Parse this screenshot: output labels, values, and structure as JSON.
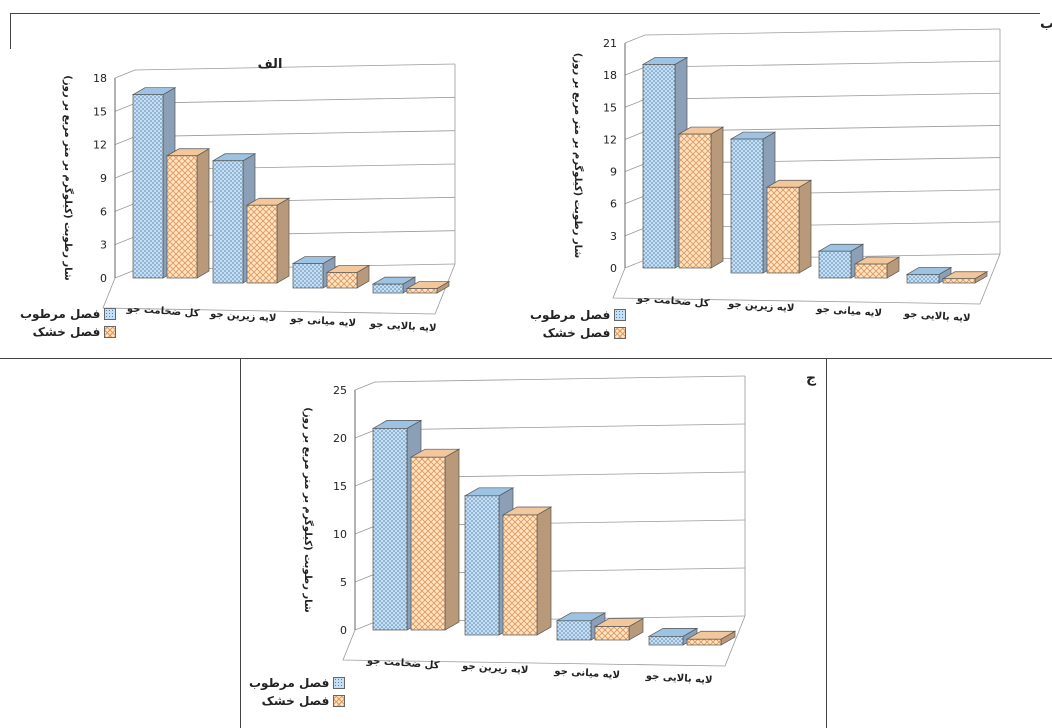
{
  "page": {
    "panel_labels": {
      "a": "الف",
      "b": "ب",
      "c": "ج"
    }
  },
  "legend": {
    "wet": "فصل مرطوب",
    "dry": "فصل خشک"
  },
  "colors": {
    "wet_fill": "#c7dff2",
    "wet_dot": "#4f83b6",
    "wet_top": "#9ec3e2",
    "wet_side": "#8b9fb6",
    "dry_fill": "#fde4c6",
    "dry_hatch": "#e09a5a",
    "dry_top": "#f1c79b",
    "dry_side": "#b89a7a",
    "axis": "#666666",
    "grid": "#9a9a9a"
  },
  "chart_data": [
    {
      "id": "alef",
      "type": "bar",
      "title": "الف",
      "ylabel": "شار رطوبت (کیلوگرم بر متر مربع بر روز)",
      "categories": [
        "کل ضخامت جو",
        "لایه زیرین جو",
        "لایه میانی جو",
        "لایه بالایی جو"
      ],
      "ylim": [
        0,
        18
      ],
      "yticks": [
        0,
        3,
        6,
        9,
        12,
        15,
        18
      ],
      "series": [
        {
          "name": "فصل مرطوب",
          "values": [
            16.5,
            11.0,
            2.2,
            0.8
          ]
        },
        {
          "name": "فصل خشک",
          "values": [
            11.0,
            7.0,
            1.4,
            0.4
          ]
        }
      ],
      "legend": "bottom-left",
      "grid": true
    },
    {
      "id": "be",
      "type": "bar",
      "title": "",
      "ylabel": "شار رطوبت (کیلوگرم بر متر مربع بر روز)",
      "categories": [
        "کل ضخامت جو",
        "لایه زیرین جو",
        "لایه میانی جو",
        "لایه بالایی جو"
      ],
      "ylim": [
        0,
        21
      ],
      "yticks": [
        0,
        3,
        6,
        9,
        12,
        15,
        18,
        21
      ],
      "series": [
        {
          "name": "فصل مرطوب",
          "values": [
            19.0,
            12.5,
            2.5,
            0.8
          ]
        },
        {
          "name": "فصل خشک",
          "values": [
            12.5,
            8.0,
            1.3,
            0.4
          ]
        }
      ],
      "legend": "bottom-left",
      "grid": true
    },
    {
      "id": "jim",
      "type": "bar",
      "title": "",
      "ylabel": "شار رطوبت (کیلوگرم بر متر مربع بر روز)",
      "categories": [
        "کل ضخامت جو",
        "لایه زیرین جو",
        "لایه میانی جو",
        "لایه بالایی جو"
      ],
      "ylim": [
        0,
        25
      ],
      "yticks": [
        0,
        5,
        10,
        15,
        20,
        25
      ],
      "series": [
        {
          "name": "فصل مرطوب",
          "values": [
            21.0,
            14.5,
            2.0,
            0.9
          ]
        },
        {
          "name": "فصل خشک",
          "values": [
            18.0,
            12.5,
            1.4,
            0.6
          ]
        }
      ],
      "legend": "bottom-left",
      "grid": true
    }
  ]
}
